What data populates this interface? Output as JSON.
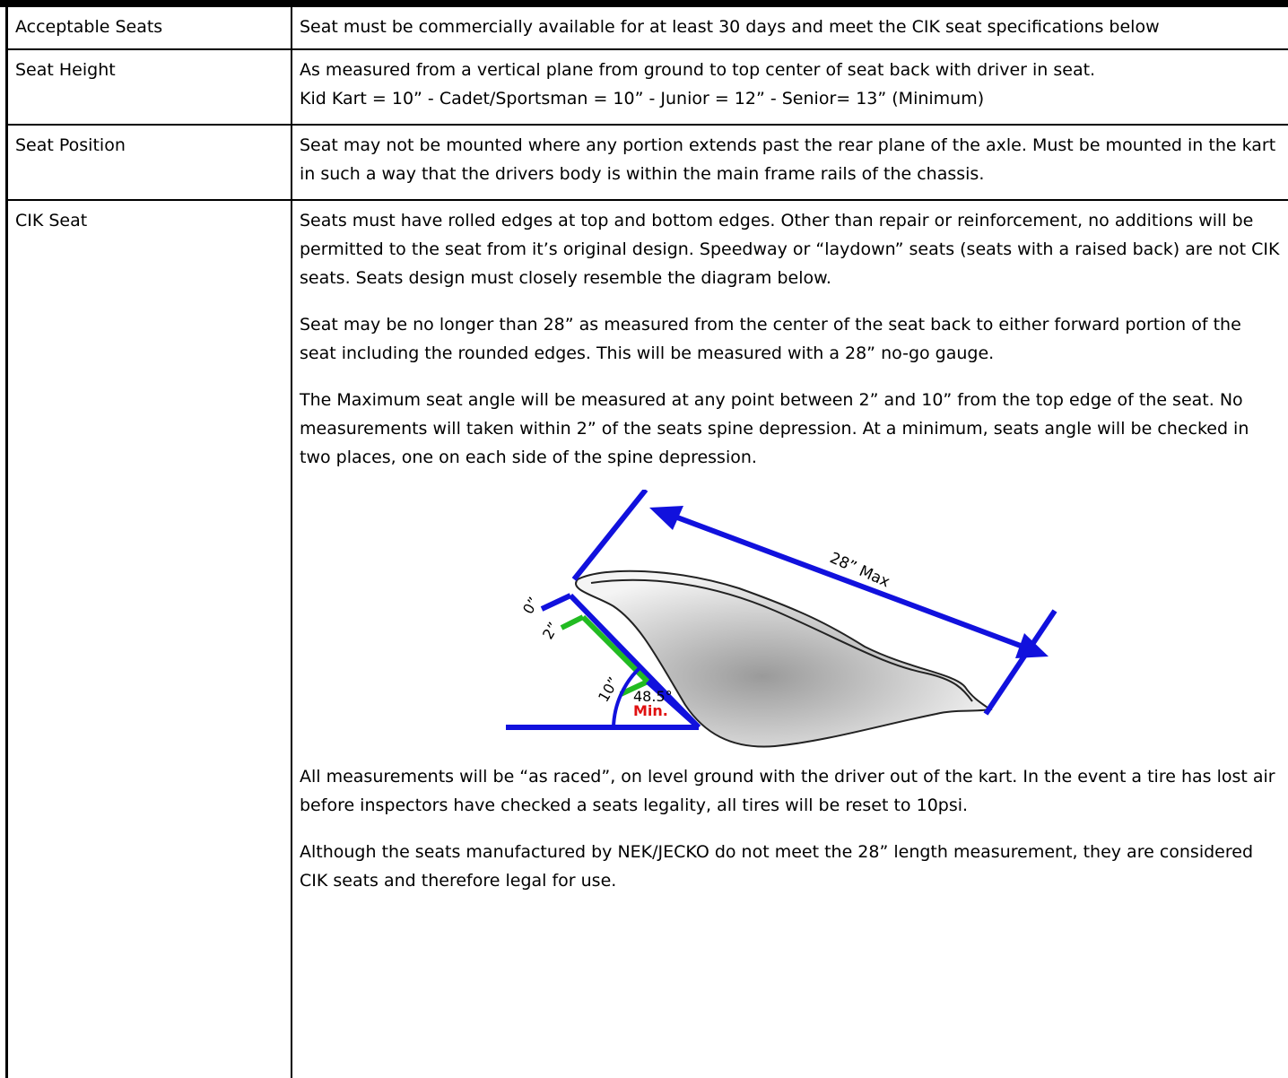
{
  "table": {
    "rows": [
      {
        "label": "Acceptable Seats",
        "paragraphs": [
          "Seat must be commercially available for at least 30 days and meet the CIK seat specifications below"
        ]
      },
      {
        "label": "Seat Height",
        "paragraphs": [
          "As measured from a vertical plane from ground to top center of seat back with driver in seat.",
          "Kid Kart = 10”  -  Cadet/Sportsman = 10”  -  Junior = 12”  -  Senior= 13” (Minimum)"
        ]
      },
      {
        "label": "Seat Position",
        "paragraphs": [
          "Seat may not be mounted where any portion extends past the rear plane of the axle. Must be mounted in the kart in such a way that the drivers body is within the main frame rails of the chassis."
        ]
      },
      {
        "label": "CIK Seat",
        "paragraphs": [
          "Seats must have rolled edges at top and bottom edges. Other than repair or reinforcement, no additions will be permitted to the seat from it’s original design. Speedway or “laydown” seats  (seats with a raised back) are not CIK seats. Seats design must closely resemble the diagram below.",
          "Seat may be no longer than 28” as measured from the center of the seat back to either forward portion of the seat including the rounded edges. This will be measured with a 28” no-go gauge.",
          "The Maximum seat angle will be measured at any point between 2” and 10” from the top edge of the seat.  No measurements will taken within 2” of the seats spine depression. At a minimum, seats angle will be checked in two places, one on each side of the spine depression.",
          "All measurements will be “as raced”, on level ground with the driver out of the kart. In the event a tire has lost air before inspectors have checked a seats legality, all tires will be reset to 10psi.",
          "Although the seats manufactured by NEK/JECKO do not meet the 28” length measurement, they are considered CIK seats and therefore legal for use."
        ]
      }
    ]
  },
  "diagram": {
    "length_label": "28” Max",
    "marks": [
      "0”",
      "2”",
      "10”"
    ],
    "angle": "48.5°",
    "angle_note": "Min."
  }
}
